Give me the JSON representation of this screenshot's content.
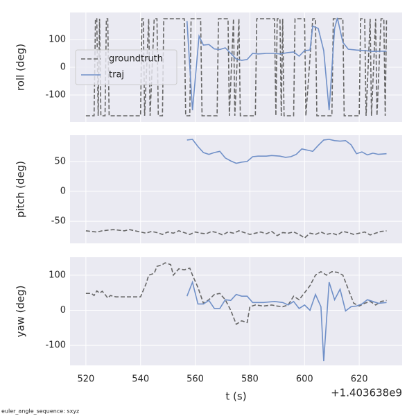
{
  "chart_data": [
    {
      "type": "line",
      "ylabel": "roll (deg)",
      "xlim": [
        514.2,
        635.7
      ],
      "xticks": [
        520,
        540,
        560,
        580,
        600,
        620
      ],
      "ylim": [
        -197.5,
        197.5
      ],
      "yticks": [
        -100,
        0,
        100
      ],
      "grid": true,
      "legend": "center left",
      "series": [
        {
          "name": "groundtruth",
          "color": "#666666",
          "dashed": true,
          "x": [
            520,
            523,
            523.5,
            524,
            524.5,
            525,
            525.5,
            527,
            527.5,
            528,
            528.5,
            540,
            540.5,
            541,
            541.5,
            543,
            543.5,
            545,
            546,
            546.5,
            548,
            548.5,
            556,
            556.5,
            558,
            558.5,
            562,
            562.5,
            568,
            568.5,
            572,
            572.5,
            574,
            574.5,
            576,
            576.5,
            582,
            582.5,
            589,
            589.5,
            590,
            591,
            591.5,
            592,
            592.5,
            596,
            596.5,
            600,
            600.5,
            603,
            604,
            604.5,
            610,
            610.5,
            614,
            614.5,
            620,
            620.5,
            622,
            622.5,
            624,
            624.5,
            626,
            626.5,
            628,
            629,
            629.5,
            630
          ],
          "values": [
            -175,
            -175,
            175,
            175,
            -175,
            175,
            -175,
            -175,
            175,
            175,
            -175,
            -175,
            175,
            175,
            -175,
            175,
            -175,
            175,
            175,
            -175,
            -175,
            175,
            175,
            -175,
            -175,
            175,
            175,
            -175,
            -175,
            175,
            175,
            -175,
            175,
            -175,
            175,
            -175,
            -175,
            175,
            175,
            -175,
            175,
            175,
            -175,
            175,
            -175,
            -175,
            175,
            175,
            -175,
            175,
            175,
            -175,
            -175,
            175,
            175,
            -175,
            -175,
            175,
            175,
            -175,
            175,
            -175,
            175,
            -175,
            175,
            175,
            -175,
            175
          ]
        },
        {
          "name": "traj",
          "color": "#7090c8",
          "dashed": false,
          "x": [
            557,
            559,
            561.4,
            563,
            565,
            567,
            569,
            571,
            573,
            575,
            577,
            579,
            581,
            583,
            586,
            589,
            591,
            594,
            596,
            598,
            600,
            602,
            603,
            605,
            607,
            609,
            611,
            612,
            614,
            616,
            619,
            622,
            625,
            628,
            630
          ],
          "values": [
            167,
            -155,
            112,
            80,
            82,
            66,
            64,
            70,
            50,
            30,
            25,
            28,
            50,
            48,
            50,
            50,
            48,
            53,
            55,
            40,
            60,
            62,
            148,
            140,
            60,
            -155,
            140,
            178,
            90,
            65,
            62,
            60,
            57,
            58,
            58
          ]
        }
      ]
    },
    {
      "type": "line",
      "ylabel": "pitch (deg)",
      "xlim": [
        514.2,
        635.7
      ],
      "xticks": [
        520,
        540,
        560,
        580,
        600,
        620
      ],
      "ylim": [
        -87,
        94
      ],
      "yticks": [
        -50,
        0,
        50
      ],
      "grid": true,
      "series": [
        {
          "name": "groundtruth",
          "color": "#666666",
          "dashed": true,
          "x": [
            520,
            522,
            524,
            526,
            528,
            530,
            532,
            534,
            536,
            538,
            540,
            542,
            544,
            546,
            548,
            550,
            552,
            554,
            556,
            558,
            560,
            562,
            564,
            566,
            568,
            570,
            572,
            574,
            576,
            578,
            580,
            582,
            584,
            586,
            588,
            590,
            592,
            594,
            596,
            598,
            600,
            602,
            604,
            606,
            608,
            610,
            612,
            614,
            616,
            618,
            620,
            622,
            624,
            626,
            628,
            630
          ],
          "values": [
            -66,
            -67,
            -68,
            -66,
            -65,
            -64,
            -65,
            -66,
            -64,
            -66,
            -68,
            -70,
            -67,
            -69,
            -72,
            -68,
            -70,
            -66,
            -69,
            -72,
            -68,
            -70,
            -71,
            -67,
            -69,
            -73,
            -68,
            -70,
            -66,
            -69,
            -72,
            -70,
            -68,
            -71,
            -67,
            -74,
            -69,
            -70,
            -68,
            -72,
            -78,
            -70,
            -72,
            -68,
            -72,
            -70,
            -73,
            -67,
            -69,
            -72,
            -70,
            -68,
            -73,
            -70,
            -67,
            -66
          ]
        },
        {
          "name": "traj",
          "color": "#7090c8",
          "dashed": false,
          "x": [
            557,
            559,
            561,
            563,
            565,
            567,
            569,
            571,
            573,
            575,
            577,
            579,
            581,
            583,
            586,
            588,
            591,
            593,
            595,
            597,
            599,
            601,
            603,
            605,
            607,
            609,
            611,
            613,
            615,
            617,
            619,
            621,
            623,
            625,
            627,
            630
          ],
          "values": [
            86,
            87,
            75,
            65,
            62,
            65,
            67,
            56,
            51,
            47,
            49,
            50,
            58,
            59,
            59,
            60,
            59,
            57,
            58,
            62,
            71,
            69,
            67,
            77,
            86,
            87,
            85,
            84,
            85,
            78,
            63,
            66,
            61,
            64,
            62,
            63
          ]
        }
      ]
    },
    {
      "type": "line",
      "ylabel": "yaw (deg)",
      "xlabel": "t (s)",
      "x_offset_label": "+1.403638e9",
      "xlim": [
        514.2,
        635.7
      ],
      "xticks": [
        520,
        540,
        560,
        580,
        600,
        620
      ],
      "ylim": [
        -157,
        151
      ],
      "yticks": [
        -100,
        0,
        100
      ],
      "grid": true,
      "series": [
        {
          "name": "groundtruth",
          "color": "#666666",
          "dashed": true,
          "x": [
            520,
            522,
            523,
            524,
            525,
            526,
            527,
            528,
            529,
            531,
            535,
            540,
            542,
            543,
            545,
            546,
            548,
            549,
            551,
            552,
            554,
            556,
            558,
            559,
            561,
            563,
            565,
            567,
            569,
            571,
            573,
            575,
            577,
            579,
            580,
            582,
            585,
            588,
            590,
            592,
            594,
            596,
            598,
            600,
            602,
            604,
            606,
            608,
            610,
            612,
            614,
            616,
            618,
            620,
            622,
            624,
            626,
            628,
            630
          ],
          "values": [
            48,
            48,
            42,
            55,
            49,
            54,
            45,
            35,
            42,
            38,
            38,
            38,
            75,
            100,
            105,
            125,
            130,
            135,
            130,
            100,
            118,
            115,
            120,
            100,
            65,
            20,
            30,
            45,
            48,
            30,
            0,
            -40,
            -30,
            -35,
            10,
            15,
            12,
            15,
            12,
            10,
            15,
            40,
            30,
            50,
            70,
            100,
            110,
            100,
            110,
            108,
            100,
            60,
            20,
            12,
            20,
            25,
            15,
            25,
            28
          ]
        },
        {
          "name": "traj",
          "color": "#7090c8",
          "dashed": false,
          "x": [
            557,
            559,
            561,
            563,
            565,
            567,
            569,
            571,
            573,
            575,
            577,
            579,
            581,
            585,
            589,
            592,
            594,
            596,
            598,
            600,
            602,
            604,
            606,
            607,
            609,
            611,
            613,
            615,
            617,
            619,
            621,
            623,
            625,
            627,
            630
          ],
          "values": [
            40,
            80,
            18,
            18,
            28,
            5,
            5,
            30,
            28,
            45,
            40,
            40,
            22,
            22,
            25,
            22,
            15,
            25,
            5,
            15,
            0,
            45,
            10,
            -145,
            80,
            30,
            60,
            -2,
            10,
            12,
            18,
            30,
            25,
            20,
            22
          ]
        }
      ]
    }
  ],
  "footer_text": "euler_angle_sequence: sxyz"
}
